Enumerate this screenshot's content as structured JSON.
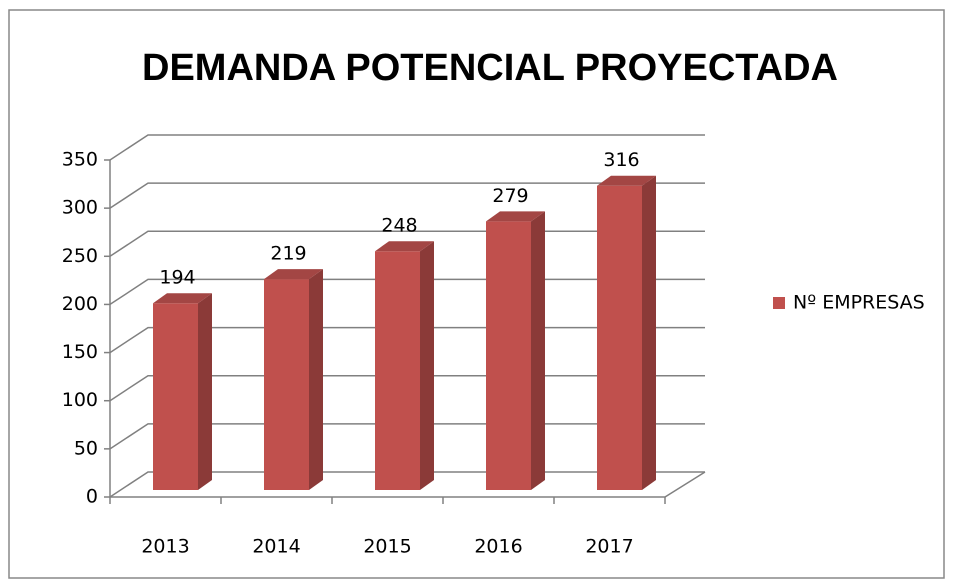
{
  "chart_data": {
    "type": "bar",
    "title": "DEMANDA POTENCIAL PROYECTADA",
    "categories": [
      "2013",
      "2014",
      "2015",
      "2016",
      "2017"
    ],
    "series": [
      {
        "name": "Nº EMPRESAS",
        "color": "#c0504d",
        "values": [
          194,
          219,
          248,
          279,
          316
        ]
      }
    ],
    "ylim": [
      0,
      350
    ],
    "yticks": [
      0,
      50,
      100,
      150,
      200,
      250,
      300,
      350
    ],
    "grid": true,
    "legend": "right"
  }
}
